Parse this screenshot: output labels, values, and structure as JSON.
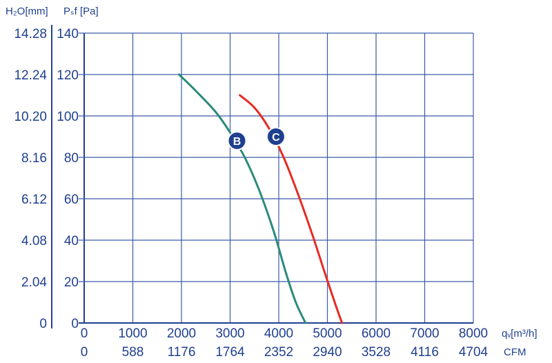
{
  "chart_data": {
    "type": "line",
    "y_left_label": "H₂O[mm]",
    "y_right_label": "Pₛf [Pa]",
    "x_label_top": "qᵥ[m³/h]",
    "x_label_bottom": "CFM",
    "xlim": [
      0,
      8000
    ],
    "ylim": [
      0,
      140
    ],
    "grid": true,
    "x_ticks": [
      "0",
      "1000",
      "2000",
      "3000",
      "4000",
      "5000",
      "6000",
      "7000",
      "8000"
    ],
    "x_ticks_cfm": [
      "0",
      "588",
      "1176",
      "1764",
      "2352",
      "2940",
      "3528",
      "4116",
      "4704"
    ],
    "y_ticks_pa": [
      "0",
      "20",
      "40",
      "60",
      "80",
      "100",
      "120",
      "140"
    ],
    "y_ticks_mm": [
      "0",
      "2.04",
      "4.08",
      "6.12",
      "8.16",
      "10.20",
      "12.24",
      "14.28"
    ],
    "series": [
      {
        "name": "B",
        "color": "#2a8a7a",
        "x": [
          1950,
          2300,
          2700,
          3000,
          3300,
          3600,
          3900,
          4150,
          4350,
          4550
        ],
        "y": [
          120,
          112,
          102,
          92,
          80,
          64,
          44,
          24,
          10,
          0
        ]
      },
      {
        "name": "C",
        "color": "#e62a24",
        "x": [
          3200,
          3500,
          3800,
          4100,
          4400,
          4700,
          4950,
          5150,
          5300
        ],
        "y": [
          110,
          104,
          94,
          80,
          62,
          42,
          24,
          10,
          0
        ]
      }
    ]
  }
}
